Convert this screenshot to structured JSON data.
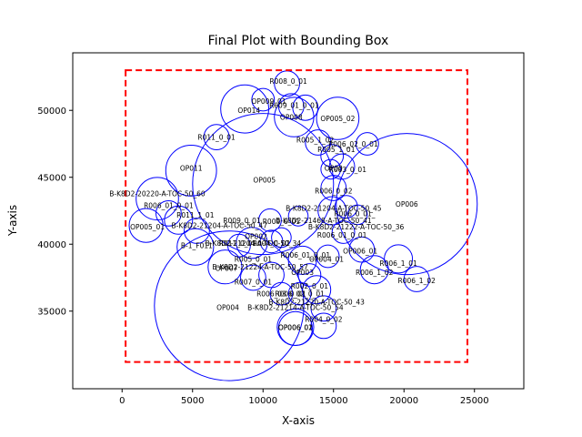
{
  "chart_data": {
    "type": "scatter",
    "title": "Final Plot with Bounding Box",
    "xlabel": "X-axis",
    "ylabel": "Y-axis",
    "xlim": [
      -3500,
      28500
    ],
    "ylim": [
      29200,
      54300
    ],
    "xticks": [
      0,
      5000,
      10000,
      15000,
      20000,
      25000
    ],
    "yticks": [
      35000,
      40000,
      45000,
      50000
    ],
    "xtick_labels": [
      "0",
      "5000",
      "10000",
      "15000",
      "20000",
      "25000"
    ],
    "ytick_labels": [
      "35000",
      "40000",
      "45000",
      "50000"
    ],
    "grid": false,
    "circle_color": "#0000ff",
    "label_color": "#000000",
    "box_color": "#ff0000",
    "bounding_box": {
      "x0": 250,
      "y0": 31200,
      "x1": 24500,
      "y1": 53000
    },
    "circles": [
      {
        "x": 20200,
        "y": 43000,
        "r": 5000
      },
      {
        "x": 10000,
        "y": 44500,
        "r": 5000
      },
      {
        "x": 7600,
        "y": 35400,
        "r": 5300
      },
      {
        "x": 4900,
        "y": 45500,
        "r": 1800
      },
      {
        "x": 2500,
        "y": 43400,
        "r": 1500
      },
      {
        "x": 8700,
        "y": 50100,
        "r": 1700
      },
      {
        "x": 12200,
        "y": 49500,
        "r": 1400
      },
      {
        "x": 15300,
        "y": 49400,
        "r": 1500
      },
      {
        "x": 11700,
        "y": 52000,
        "r": 900
      },
      {
        "x": 10000,
        "y": 50800,
        "r": 800
      },
      {
        "x": 12000,
        "y": 50300,
        "r": 900
      },
      {
        "x": 13000,
        "y": 50200,
        "r": 900
      },
      {
        "x": 6700,
        "y": 48000,
        "r": 900
      },
      {
        "x": 13900,
        "y": 47600,
        "r": 900
      },
      {
        "x": 14900,
        "y": 46600,
        "r": 800
      },
      {
        "x": 15600,
        "y": 45800,
        "r": 900
      },
      {
        "x": 17400,
        "y": 47500,
        "r": 800
      },
      {
        "x": 14800,
        "y": 45600,
        "r": 700
      },
      {
        "x": 15000,
        "y": 44200,
        "r": 900
      },
      {
        "x": 1700,
        "y": 41400,
        "r": 1200
      },
      {
        "x": 3300,
        "y": 42300,
        "r": 900
      },
      {
        "x": 4000,
        "y": 41800,
        "r": 1000
      },
      {
        "x": 5300,
        "y": 41000,
        "r": 900
      },
      {
        "x": 5200,
        "y": 39800,
        "r": 1300
      },
      {
        "x": 7300,
        "y": 38300,
        "r": 1200
      },
      {
        "x": 8300,
        "y": 39900,
        "r": 800
      },
      {
        "x": 9200,
        "y": 40100,
        "r": 1100
      },
      {
        "x": 10600,
        "y": 40200,
        "r": 800
      },
      {
        "x": 11300,
        "y": 40500,
        "r": 700
      },
      {
        "x": 10500,
        "y": 41800,
        "r": 800
      },
      {
        "x": 12500,
        "y": 42100,
        "r": 700
      },
      {
        "x": 15900,
        "y": 42800,
        "r": 800
      },
      {
        "x": 16700,
        "y": 42200,
        "r": 700
      },
      {
        "x": 14900,
        "y": 42500,
        "r": 1000
      },
      {
        "x": 15700,
        "y": 40900,
        "r": 800
      },
      {
        "x": 17000,
        "y": 39600,
        "r": 900
      },
      {
        "x": 14600,
        "y": 39100,
        "r": 800
      },
      {
        "x": 12800,
        "y": 38800,
        "r": 1000
      },
      {
        "x": 13300,
        "y": 37700,
        "r": 800
      },
      {
        "x": 10600,
        "y": 37700,
        "r": 900
      },
      {
        "x": 9300,
        "y": 37500,
        "r": 900
      },
      {
        "x": 17900,
        "y": 38100,
        "r": 1000
      },
      {
        "x": 19600,
        "y": 38900,
        "r": 1000
      },
      {
        "x": 20900,
        "y": 37400,
        "r": 900
      },
      {
        "x": 11300,
        "y": 36300,
        "r": 800
      },
      {
        "x": 12600,
        "y": 36300,
        "r": 800
      },
      {
        "x": 13800,
        "y": 36600,
        "r": 1000
      },
      {
        "x": 14300,
        "y": 35200,
        "r": 900
      },
      {
        "x": 12300,
        "y": 33800,
        "r": 1300
      },
      {
        "x": 12300,
        "y": 33700,
        "r": 1200
      },
      {
        "x": 14300,
        "y": 33900,
        "r": 900
      }
    ],
    "annotations": [
      {
        "text": "R008_0_01",
        "x": 11800,
        "y": 52200
      },
      {
        "text": "OP009_01",
        "x": 10400,
        "y": 50700
      },
      {
        "text": "OP014",
        "x": 9000,
        "y": 50000
      },
      {
        "text": "R009_01_0_01",
        "x": 12200,
        "y": 50400
      },
      {
        "text": "OP008",
        "x": 12000,
        "y": 49500
      },
      {
        "text": "OP005_02",
        "x": 15300,
        "y": 49400
      },
      {
        "text": "R011_0_01",
        "x": 6700,
        "y": 48000
      },
      {
        "text": "R005_1_02",
        "x": 13700,
        "y": 47800
      },
      {
        "text": "R006_02_0_01",
        "x": 16400,
        "y": 47500
      },
      {
        "text": "R005_1_01",
        "x": 15200,
        "y": 47100
      },
      {
        "text": "OP011",
        "x": 4900,
        "y": 45700
      },
      {
        "text": "OP00",
        "x": 15000,
        "y": 45700
      },
      {
        "text": "R003_0_01",
        "x": 16000,
        "y": 45600
      },
      {
        "text": "OP005",
        "x": 10100,
        "y": 44800
      },
      {
        "text": "OP006",
        "x": 20200,
        "y": 43000
      },
      {
        "text": "R006_0_02",
        "x": 15000,
        "y": 44000
      },
      {
        "text": "B-K8D2-20220-A-TOC-50_60",
        "x": 2500,
        "y": 43800
      },
      {
        "text": "R006_01_0_01",
        "x": 3300,
        "y": 42900
      },
      {
        "text": "B-K8D2-21204-A-TOC-50_45",
        "x": 15000,
        "y": 42700
      },
      {
        "text": "R011_1_01",
        "x": 5200,
        "y": 42200
      },
      {
        "text": "R006_0_01_",
        "x": 16500,
        "y": 42300
      },
      {
        "text": "R009_0_01",
        "x": 8500,
        "y": 41800
      },
      {
        "text": "R009_0_01",
        "x": 11300,
        "y": 41700
      },
      {
        "text": "B-K8D2-21468-A-TOC-50_41",
        "x": 14300,
        "y": 41800
      },
      {
        "text": "OP005_01",
        "x": 1800,
        "y": 41300
      },
      {
        "text": "B-K8D2-21204-A-TOC-50_47",
        "x": 6900,
        "y": 41400
      },
      {
        "text": "B-K8D2-21222-A-TOC-50_36",
        "x": 16600,
        "y": 41300
      },
      {
        "text": "R006_01_0_01",
        "x": 15600,
        "y": 40700
      },
      {
        "text": "OP002",
        "x": 9500,
        "y": 40600
      },
      {
        "text": "B-1_F011",
        "x": 5300,
        "y": 39900
      },
      {
        "text": "B-K8D2-21204-A-TOC-50_34",
        "x": 9300,
        "y": 40100
      },
      {
        "text": "R004_0_02",
        "x": 10600,
        "y": 40100
      },
      {
        "text": "R011_0_01",
        "x": 8200,
        "y": 40100
      },
      {
        "text": "OP006_01",
        "x": 16900,
        "y": 39500
      },
      {
        "text": "OP004_01",
        "x": 14500,
        "y": 38900
      },
      {
        "text": "R005_0_01",
        "x": 9300,
        "y": 38900
      },
      {
        "text": "R006_01_0_01",
        "x": 13000,
        "y": 39200
      },
      {
        "text": "R006_1_01",
        "x": 19600,
        "y": 38600
      },
      {
        "text": "OP007",
        "x": 7400,
        "y": 38200
      },
      {
        "text": "B-K8D2-21224-A-TOC-50_57",
        "x": 9800,
        "y": 38300
      },
      {
        "text": "OP003",
        "x": 12800,
        "y": 37900
      },
      {
        "text": "R006_1_02",
        "x": 17900,
        "y": 37900
      },
      {
        "text": "R006_1_02",
        "x": 20900,
        "y": 37300
      },
      {
        "text": "R007_0_01",
        "x": 9300,
        "y": 37200
      },
      {
        "text": "R002_0_01",
        "x": 13300,
        "y": 36900
      },
      {
        "text": "R006_03_0_01",
        "x": 11300,
        "y": 36300
      },
      {
        "text": "R006_02_0_01",
        "x": 12600,
        "y": 36300
      },
      {
        "text": "B-K8D2-21220-A-TOC-50_43",
        "x": 13800,
        "y": 35700
      },
      {
        "text": "OP004",
        "x": 7500,
        "y": 35300
      },
      {
        "text": "B-K8D2-21214-A-TOC-50_54",
        "x": 12300,
        "y": 35300
      },
      {
        "text": "R004_0_02",
        "x": 14300,
        "y": 34400
      },
      {
        "text": "OP006_01",
        "x": 12300,
        "y": 33800
      },
      {
        "text": "OP006_02",
        "x": 12300,
        "y": 33800
      }
    ]
  }
}
